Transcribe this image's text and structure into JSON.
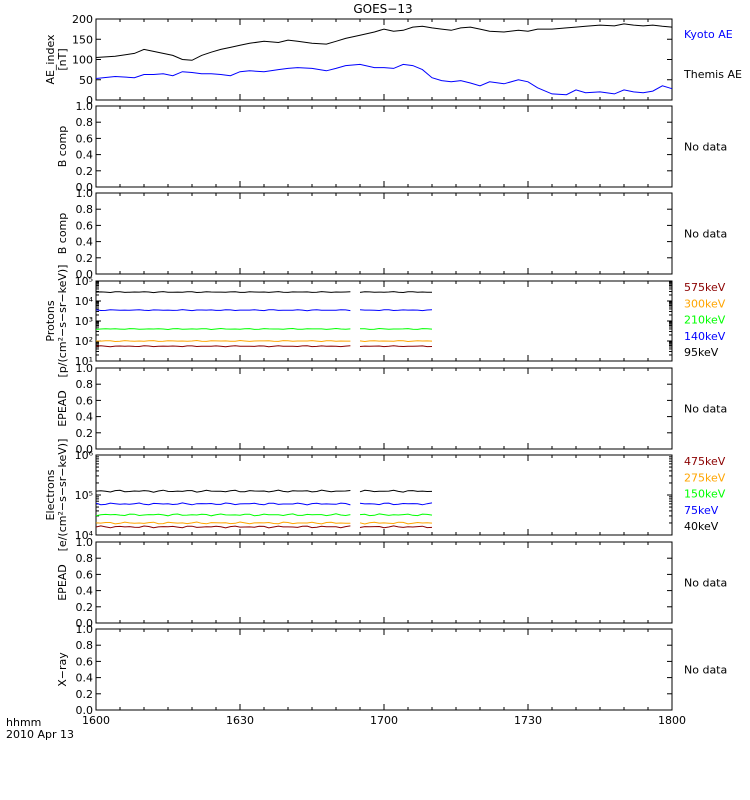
{
  "title": "GOES−13",
  "footer": {
    "time_label": "hhmm",
    "date_label": "2010 Apr 13"
  },
  "x_axis": {
    "ticks": [
      "1600",
      "1630",
      "1700",
      "1730",
      "1800"
    ],
    "range_minutes": [
      0,
      120
    ]
  },
  "colors": {
    "black": "#000000",
    "blue": "#0000ff",
    "green": "#00ff00",
    "orange": "#ffa500",
    "darkred": "#8b0000"
  },
  "chart_data": [
    {
      "type": "line",
      "ylabel": [
        "AE_index",
        "[nT]"
      ],
      "ylim": [
        0,
        200
      ],
      "yticks": [
        "0",
        "50",
        "100",
        "150",
        "200"
      ],
      "legend": [
        "Kyoto AE",
        "Themis AE"
      ],
      "x_minutes": [
        0,
        4,
        8,
        10,
        12,
        14,
        16,
        18,
        20,
        22,
        24,
        26,
        28,
        30,
        32,
        35,
        38,
        40,
        42,
        45,
        48,
        50,
        52,
        55,
        58,
        60,
        62,
        64,
        66,
        68,
        70,
        72,
        74,
        76,
        78,
        80,
        82,
        85,
        88,
        90,
        92,
        95,
        98,
        100,
        102,
        105,
        108,
        110,
        112,
        114,
        116,
        118,
        120
      ],
      "series": [
        {
          "name": "Kyoto AE",
          "color": "#0000ff",
          "values": [
            53,
            58,
            55,
            63,
            63,
            65,
            60,
            70,
            68,
            65,
            65,
            63,
            60,
            70,
            72,
            70,
            75,
            78,
            80,
            78,
            72,
            78,
            85,
            88,
            80,
            80,
            78,
            88,
            85,
            75,
            55,
            48,
            45,
            48,
            42,
            35,
            45,
            40,
            50,
            45,
            30,
            15,
            13,
            25,
            18,
            20,
            15,
            25,
            20,
            18,
            22,
            35,
            28
          ]
        },
        {
          "name": "Themis AE",
          "color": "#000000",
          "values": [
            105,
            108,
            115,
            125,
            120,
            115,
            110,
            100,
            98,
            110,
            118,
            125,
            130,
            135,
            140,
            145,
            142,
            148,
            145,
            140,
            138,
            145,
            152,
            160,
            168,
            175,
            170,
            172,
            180,
            182,
            178,
            175,
            172,
            178,
            180,
            175,
            170,
            168,
            172,
            170,
            175,
            175,
            178,
            180,
            182,
            185,
            183,
            188,
            185,
            183,
            185,
            182,
            180
          ]
        }
      ]
    },
    {
      "type": "line",
      "ylabel": [
        "B comp"
      ],
      "ylim": [
        0,
        1
      ],
      "yticks": [
        "0.0",
        "0.2",
        "0.4",
        "0.6",
        "0.8",
        "1.0"
      ],
      "note": "No data",
      "series": []
    },
    {
      "type": "line",
      "ylabel": [
        "B comp"
      ],
      "ylim": [
        0,
        1
      ],
      "yticks": [
        "0.0",
        "0.2",
        "0.4",
        "0.6",
        "0.8",
        "1.0"
      ],
      "note": "No data",
      "series": []
    },
    {
      "type": "line",
      "ylabel": [
        "Protons",
        "[p/(cm²−s−sr−keV)]"
      ],
      "ylim": [
        10,
        100000
      ],
      "log": true,
      "yticks": [
        "10¹",
        "10²",
        "10³",
        "10⁴",
        "10⁵"
      ],
      "legend": [
        "575keV",
        "300keV",
        "210keV",
        "140keV",
        "95keV"
      ],
      "gaps_minutes": [
        [
          53,
          55
        ],
        [
          70,
          120
        ]
      ],
      "series": [
        {
          "name": "95keV",
          "color": "#000000",
          "values": [
            28000
          ]
        },
        {
          "name": "140keV",
          "color": "#0000ff",
          "values": [
            3500
          ]
        },
        {
          "name": "210keV",
          "color": "#00ff00",
          "values": [
            400
          ]
        },
        {
          "name": "300keV",
          "color": "#ffa500",
          "values": [
            100
          ]
        },
        {
          "name": "575keV",
          "color": "#8b0000",
          "values": [
            55
          ]
        }
      ]
    },
    {
      "type": "line",
      "ylabel": [
        "EPEAD"
      ],
      "ylim": [
        0,
        1
      ],
      "yticks": [
        "0.0",
        "0.2",
        "0.4",
        "0.6",
        "0.8",
        "1.0"
      ],
      "note": "No data",
      "series": []
    },
    {
      "type": "line",
      "ylabel": [
        "Electrons",
        "[e/(cm²−s−sr−keV)]"
      ],
      "ylim": [
        10000,
        1000000
      ],
      "log": true,
      "yticks": [
        "10⁴",
        "10⁵",
        "10⁶"
      ],
      "legend": [
        "475keV",
        "275keV",
        "150keV",
        "75keV",
        "40keV"
      ],
      "gaps_minutes": [
        [
          53,
          55
        ],
        [
          70,
          120
        ]
      ],
      "series": [
        {
          "name": "40keV",
          "color": "#000000",
          "values": [
            125000
          ]
        },
        {
          "name": "75keV",
          "color": "#0000ff",
          "values": [
            60000
          ]
        },
        {
          "name": "150keV",
          "color": "#00ff00",
          "values": [
            32000
          ]
        },
        {
          "name": "275keV",
          "color": "#ffa500",
          "values": [
            20000
          ]
        },
        {
          "name": "475keV",
          "color": "#8b0000",
          "values": [
            16000
          ]
        }
      ]
    },
    {
      "type": "line",
      "ylabel": [
        "EPEAD"
      ],
      "ylim": [
        0,
        1
      ],
      "yticks": [
        "0.0",
        "0.2",
        "0.4",
        "0.6",
        "0.8",
        "1.0"
      ],
      "note": "No data",
      "series": []
    },
    {
      "type": "line",
      "ylabel": [
        "X−ray"
      ],
      "ylim": [
        0,
        1
      ],
      "yticks": [
        "0.0",
        "0.2",
        "0.4",
        "0.6",
        "0.8",
        "1.0"
      ],
      "note": "No data",
      "series": []
    }
  ]
}
